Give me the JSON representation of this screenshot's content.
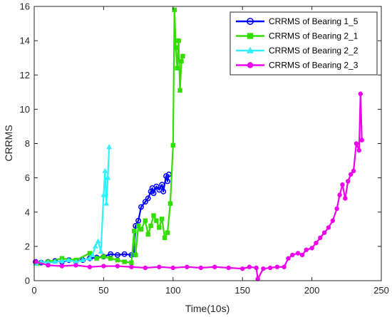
{
  "chart_data": {
    "type": "line",
    "xlabel": "Time(10s)",
    "ylabel": "CRRMS",
    "xlim": [
      0,
      250
    ],
    "ylim": [
      0,
      16
    ],
    "xticks": [
      0,
      50,
      100,
      150,
      200,
      250
    ],
    "yticks": [
      0,
      2,
      4,
      6,
      8,
      10,
      12,
      14,
      16
    ],
    "grid": false,
    "legend_position": "top-right",
    "series": [
      {
        "name": "CRRMS of Bearing 1_5",
        "color": "#0000ff",
        "marker": "circle",
        "x": [
          1,
          5,
          10,
          15,
          20,
          25,
          30,
          35,
          40,
          45,
          50,
          55,
          60,
          65,
          70,
          72,
          73,
          75,
          77,
          80,
          82,
          84,
          85,
          86,
          88,
          90,
          92,
          93,
          95,
          96,
          97
        ],
        "y": [
          1.1,
          1.05,
          1.1,
          1.15,
          1.1,
          1.2,
          1.15,
          1.2,
          1.3,
          1.35,
          1.4,
          1.55,
          1.5,
          1.55,
          1.5,
          1.6,
          3.2,
          3.5,
          4.3,
          4.6,
          4.8,
          5.2,
          5.4,
          5.1,
          5.5,
          5.3,
          5.6,
          5.2,
          6.1,
          5.8,
          6.2
        ]
      },
      {
        "name": "CRRMS of Bearing 2_1",
        "color": "#33dd00",
        "marker": "square",
        "x": [
          2,
          10,
          20,
          30,
          40,
          45,
          50,
          55,
          60,
          65,
          70,
          72,
          73,
          75,
          77,
          80,
          82,
          84,
          86,
          88,
          90,
          92,
          94,
          96,
          98,
          100,
          101,
          102,
          103,
          104,
          105,
          106,
          107
        ],
        "y": [
          1.0,
          1.1,
          1.3,
          1.2,
          1.6,
          1.3,
          1.4,
          1.3,
          1.2,
          1.1,
          1.05,
          2.9,
          1.5,
          3.2,
          3.0,
          3.5,
          2.7,
          3.2,
          3.8,
          3.5,
          3.1,
          3.6,
          2.5,
          2.8,
          4.5,
          7.9,
          15.8,
          13.6,
          12.4,
          14.0,
          11.1,
          12.8,
          13.1
        ]
      },
      {
        "name": "CRRMS of Bearing 2_2",
        "color": "#33eeff",
        "marker": "triangle",
        "x": [
          1,
          5,
          10,
          15,
          20,
          25,
          30,
          35,
          40,
          42,
          44,
          46,
          48,
          50,
          51,
          52,
          53,
          54
        ],
        "y": [
          1.0,
          1.1,
          1.05,
          1.1,
          1.15,
          1.2,
          1.1,
          1.2,
          1.3,
          1.5,
          2.0,
          2.3,
          1.7,
          5.0,
          6.4,
          4.5,
          6.0,
          7.8
        ]
      },
      {
        "name": "CRRMS of Bearing 2_3",
        "color": "#ee00ee",
        "marker": "circle-filled",
        "x": [
          1,
          10,
          20,
          30,
          40,
          50,
          60,
          70,
          80,
          90,
          100,
          110,
          120,
          130,
          140,
          150,
          155,
          160,
          161,
          165,
          170,
          175,
          180,
          183,
          186,
          190,
          193,
          196,
          200,
          203,
          206,
          209,
          212,
          215,
          218,
          220,
          222,
          224,
          226,
          228,
          230,
          232,
          234,
          235,
          236
        ],
        "y": [
          1.1,
          0.9,
          0.85,
          0.9,
          0.8,
          0.85,
          0.85,
          0.8,
          0.75,
          0.8,
          0.75,
          0.8,
          0.75,
          0.8,
          0.75,
          0.7,
          0.8,
          0.75,
          0.1,
          0.7,
          0.75,
          0.8,
          0.8,
          1.3,
          1.5,
          1.6,
          1.5,
          1.8,
          1.9,
          2.2,
          2.5,
          2.8,
          3.1,
          3.5,
          4.2,
          5.0,
          5.6,
          4.8,
          5.8,
          6.2,
          6.4,
          8.0,
          7.6,
          10.9,
          8.2
        ]
      }
    ]
  }
}
